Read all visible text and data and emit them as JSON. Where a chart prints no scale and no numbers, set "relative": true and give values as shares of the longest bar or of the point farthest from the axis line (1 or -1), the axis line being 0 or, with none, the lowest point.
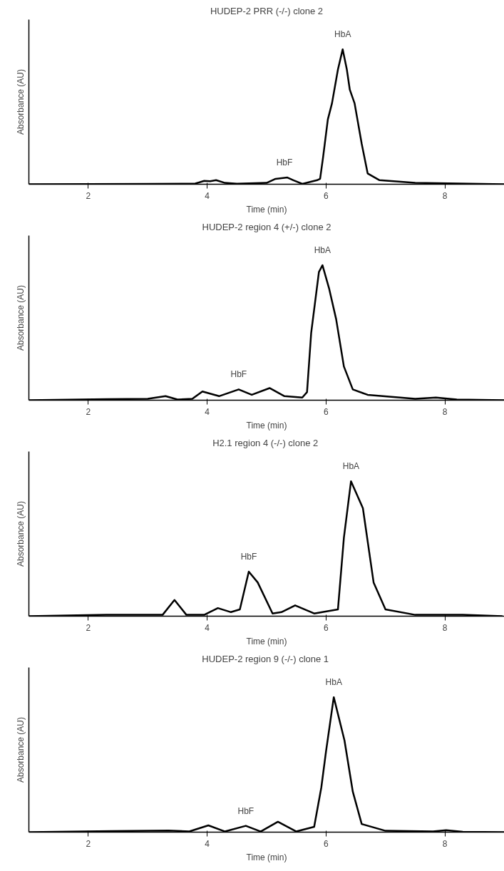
{
  "chart_data": [
    {
      "type": "line",
      "title": "HUDEP-2 PRR (-/-) clone 2",
      "xlabel": "Time (min)",
      "ylabel": "Absorbance (AU)",
      "relative": true,
      "xlim": [
        1,
        9
      ],
      "xticks": [
        2,
        4,
        6,
        8
      ],
      "tick_labels": "x",
      "x": [
        1.0,
        3.0,
        3.8,
        3.95,
        4.05,
        4.15,
        4.3,
        4.5,
        5.0,
        5.15,
        5.35,
        5.45,
        5.6,
        5.85,
        5.9,
        5.95,
        6.03,
        6.1,
        6.2,
        6.28,
        6.35,
        6.4,
        6.48,
        6.6,
        6.7,
        6.9,
        7.5,
        9.0
      ],
      "series": [
        {
          "color": "#000000",
          "values": [
            0,
            0.002,
            0.005,
            0.025,
            0.022,
            0.03,
            0.01,
            0.004,
            0.01,
            0.04,
            0.05,
            0.03,
            0.003,
            0.03,
            0.04,
            0.2,
            0.48,
            0.6,
            0.85,
            1.0,
            0.85,
            0.7,
            0.6,
            0.3,
            0.08,
            0.03,
            0.01,
            0
          ]
        }
      ],
      "annotations": [
        {
          "text": "HbF",
          "x": 5.3,
          "y": 0.05
        },
        {
          "text": "HbA",
          "x": 6.28,
          "y": 1.0
        }
      ]
    },
    {
      "type": "line",
      "title": "HUDEP-2 region 4 (+/-) clone 2",
      "xlabel": "Time (min)",
      "ylabel": "Absorbance (AU)",
      "relative": true,
      "xlim": [
        1,
        9
      ],
      "xticks": [
        2,
        4,
        6,
        8
      ],
      "tick_labels": "x",
      "x": [
        1.0,
        2.3,
        3.0,
        3.3,
        3.5,
        3.75,
        3.92,
        4.2,
        4.53,
        4.75,
        5.05,
        5.3,
        5.6,
        5.68,
        5.75,
        5.88,
        5.94,
        6.05,
        6.17,
        6.3,
        6.45,
        6.7,
        7.5,
        7.85,
        8.2,
        9.0
      ],
      "series": [
        {
          "color": "#000000",
          "values": [
            0,
            0.008,
            0.01,
            0.03,
            0.005,
            0.01,
            0.065,
            0.03,
            0.08,
            0.04,
            0.09,
            0.03,
            0.02,
            0.06,
            0.5,
            0.95,
            1.0,
            0.83,
            0.6,
            0.25,
            0.08,
            0.04,
            0.01,
            0.02,
            0.005,
            0
          ]
        }
      ],
      "annotations": [
        {
          "text": "HbF",
          "x": 4.53,
          "y": 0.08
        },
        {
          "text": "HbA",
          "x": 5.94,
          "y": 1.0
        }
      ]
    },
    {
      "type": "line",
      "title": "H2.1 region 4 (-/-)  clone 2",
      "xlabel": "Time (min)",
      "ylabel": "Absorbance (AU)",
      "relative": true,
      "xlim": [
        1,
        9
      ],
      "xticks": [
        2,
        4,
        6,
        8
      ],
      "tick_labels": "x",
      "x": [
        1.0,
        2.3,
        3.25,
        3.45,
        3.65,
        3.95,
        4.18,
        4.4,
        4.55,
        4.7,
        4.85,
        5.1,
        5.25,
        5.48,
        5.8,
        6.2,
        6.3,
        6.42,
        6.55,
        6.62,
        6.8,
        7.0,
        7.5,
        8.3,
        8.97
      ],
      "series": [
        {
          "color": "#000000",
          "values": [
            0,
            0.01,
            0.01,
            0.12,
            0.01,
            0.01,
            0.06,
            0.03,
            0.05,
            0.33,
            0.25,
            0.02,
            0.03,
            0.08,
            0.02,
            0.05,
            0.58,
            1.0,
            0.87,
            0.8,
            0.25,
            0.05,
            0.01,
            0.01,
            0
          ]
        }
      ],
      "annotations": [
        {
          "text": "HbF",
          "x": 4.7,
          "y": 0.33
        },
        {
          "text": "HbA",
          "x": 6.42,
          "y": 1.0
        }
      ]
    },
    {
      "type": "line",
      "title": "HUDEP-2  region 9 (-/-) clone 1",
      "xlabel": "Time (min)",
      "ylabel": "Absorbance (AU)",
      "relative": true,
      "xlim": [
        1,
        9
      ],
      "xticks": [
        2,
        4,
        6,
        8
      ],
      "tick_labels": "x",
      "x": [
        1.0,
        2.4,
        3.35,
        3.7,
        4.02,
        4.3,
        4.65,
        4.9,
        5.19,
        5.5,
        5.8,
        5.92,
        6.0,
        6.13,
        6.31,
        6.45,
        6.6,
        7.0,
        7.8,
        8.02,
        8.3,
        9.0
      ],
      "series": [
        {
          "color": "#000000",
          "values": [
            0,
            0.008,
            0.012,
            0.005,
            0.05,
            0.005,
            0.047,
            0.005,
            0.077,
            0.005,
            0.04,
            0.33,
            0.6,
            1.0,
            0.68,
            0.3,
            0.06,
            0.01,
            0.005,
            0.015,
            0.003,
            0
          ]
        }
      ],
      "annotations": [
        {
          "text": "HbF",
          "x": 4.65,
          "y": 0.047
        },
        {
          "text": "HbA",
          "x": 6.13,
          "y": 1.0
        }
      ]
    }
  ]
}
